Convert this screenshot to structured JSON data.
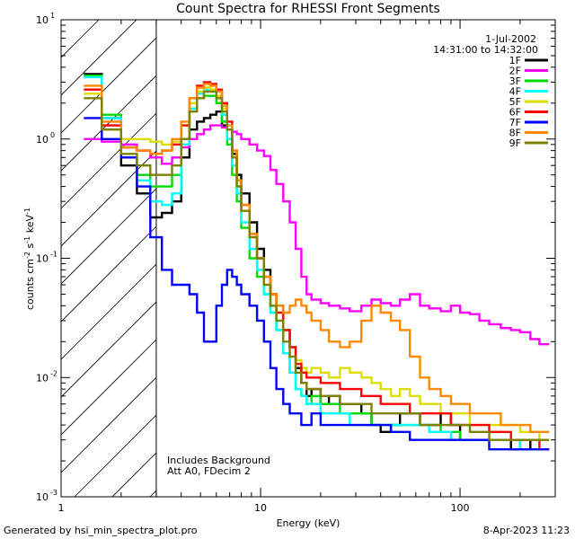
{
  "chart_data": {
    "type": "line",
    "title": "Count Spectra for RHESSI Front Segments",
    "xlabel": "Energy (keV)",
    "ylabel_parts": {
      "a": "counts cm",
      "b": "-2",
      "c": " s",
      "d": "-1",
      "e": " keV",
      "f": "-1"
    },
    "xscale": "log",
    "yscale": "log",
    "xlim": [
      1,
      300
    ],
    "ylim": [
      0.001,
      10
    ],
    "x_ticks": [
      {
        "value": 1,
        "label": "1"
      },
      {
        "value": 10,
        "label": "10"
      },
      {
        "value": 100,
        "label": "100"
      }
    ],
    "y_ticks": [
      {
        "value": 0.001,
        "base": "10",
        "exp": "-3"
      },
      {
        "value": 0.01,
        "base": "10",
        "exp": "-2"
      },
      {
        "value": 0.1,
        "base": "10",
        "exp": "-1"
      },
      {
        "value": 1,
        "base": "10",
        "exp": "0"
      },
      {
        "value": 10,
        "base": "10",
        "exp": "1"
      }
    ],
    "hatched_region_x": [
      1,
      3
    ],
    "date": "1-Jul-2002",
    "time_range": "14:31:00 to 14:32:00",
    "annotation_lines": [
      "Includes Background",
      "Att A0, FDecim 2"
    ],
    "energy_edges": [
      1.3,
      1.6,
      2.0,
      2.4,
      2.8,
      3.2,
      3.6,
      4.0,
      4.4,
      4.8,
      5.2,
      5.6,
      6.0,
      6.4,
      6.8,
      7.2,
      7.6,
      8.0,
      8.8,
      9.6,
      10.4,
      11.2,
      12.0,
      13.0,
      14.0,
      15.0,
      16.0,
      17.0,
      18.0,
      20.0,
      22.0,
      25.0,
      28.0,
      32.0,
      36.0,
      40.0,
      45.0,
      50.0,
      56.0,
      63.0,
      70.0,
      80.0,
      90.0,
      100.0,
      112.0,
      125.0,
      140.0,
      160.0,
      180.0,
      200.0,
      225.0,
      250.0,
      280.0
    ],
    "series": [
      {
        "name": "1F",
        "color": "#000000",
        "values": [
          3.5,
          1.5,
          0.6,
          0.35,
          0.22,
          0.24,
          0.3,
          0.7,
          1.2,
          1.4,
          1.5,
          1.6,
          1.7,
          1.3,
          1.0,
          0.75,
          0.5,
          0.35,
          0.2,
          0.12,
          0.08,
          0.05,
          0.04,
          0.025,
          0.018,
          0.012,
          0.009,
          0.007,
          0.008,
          0.006,
          0.007,
          0.006,
          0.006,
          0.005,
          0.004,
          0.0035,
          0.004,
          0.005,
          0.005,
          0.004,
          0.004,
          0.005,
          0.004,
          0.003,
          0.003,
          0.003,
          0.003,
          0.003,
          0.0025,
          0.003,
          0.0025,
          0.0025
        ]
      },
      {
        "name": "2F",
        "color": "#ff00ff",
        "values": [
          1.0,
          0.95,
          0.9,
          0.8,
          0.7,
          0.62,
          0.7,
          0.85,
          1.0,
          1.1,
          1.2,
          1.3,
          1.3,
          1.25,
          1.2,
          1.15,
          1.1,
          1.0,
          0.9,
          0.8,
          0.72,
          0.55,
          0.42,
          0.3,
          0.2,
          0.12,
          0.07,
          0.05,
          0.045,
          0.042,
          0.04,
          0.038,
          0.036,
          0.04,
          0.045,
          0.042,
          0.04,
          0.045,
          0.05,
          0.04,
          0.038,
          0.036,
          0.04,
          0.035,
          0.034,
          0.03,
          0.028,
          0.026,
          0.025,
          0.024,
          0.021,
          0.019
        ]
      },
      {
        "name": "3F",
        "color": "#00dd00",
        "values": [
          3.4,
          1.6,
          0.7,
          0.5,
          0.4,
          0.4,
          0.5,
          1.0,
          1.8,
          2.2,
          2.3,
          2.3,
          2.0,
          1.4,
          0.9,
          0.5,
          0.3,
          0.18,
          0.1,
          0.07,
          0.05,
          0.035,
          0.025,
          0.016,
          0.011,
          0.008,
          0.007,
          0.006,
          0.007,
          0.006,
          0.006,
          0.005,
          0.005,
          0.005,
          0.004,
          0.004,
          0.004,
          0.004,
          0.004,
          0.004,
          0.004,
          0.0035,
          0.0035,
          0.003,
          0.003,
          0.003,
          0.003,
          0.003,
          0.003,
          0.0025,
          0.0025,
          0.0025
        ]
      },
      {
        "name": "4F",
        "color": "#00ffff",
        "values": [
          3.3,
          1.5,
          0.7,
          0.45,
          0.3,
          0.28,
          0.35,
          0.9,
          1.8,
          2.4,
          2.6,
          2.5,
          2.2,
          1.6,
          1.0,
          0.6,
          0.35,
          0.2,
          0.12,
          0.08,
          0.05,
          0.035,
          0.025,
          0.016,
          0.011,
          0.008,
          0.007,
          0.006,
          0.006,
          0.005,
          0.005,
          0.005,
          0.004,
          0.004,
          0.004,
          0.004,
          0.004,
          0.004,
          0.004,
          0.004,
          0.0035,
          0.0035,
          0.003,
          0.003,
          0.003,
          0.003,
          0.003,
          0.003,
          0.003,
          0.0025,
          0.0025,
          0.0025
        ]
      },
      {
        "name": "5F",
        "color": "#dddd00",
        "values": [
          2.4,
          1.2,
          1.0,
          1.0,
          0.95,
          0.9,
          0.95,
          1.3,
          2.0,
          2.5,
          2.7,
          2.6,
          2.3,
          1.8,
          1.2,
          0.7,
          0.4,
          0.25,
          0.15,
          0.1,
          0.07,
          0.05,
          0.035,
          0.025,
          0.018,
          0.014,
          0.012,
          0.011,
          0.012,
          0.011,
          0.01,
          0.012,
          0.011,
          0.01,
          0.009,
          0.008,
          0.007,
          0.008,
          0.007,
          0.006,
          0.006,
          0.005,
          0.005,
          0.005,
          0.004,
          0.004,
          0.004,
          0.004,
          0.004,
          0.0035,
          0.0035,
          0.003
        ]
      },
      {
        "name": "6F",
        "color": "#ff0000",
        "values": [
          2.6,
          1.3,
          0.85,
          0.8,
          0.75,
          0.8,
          0.9,
          1.3,
          2.2,
          2.8,
          3.0,
          2.9,
          2.6,
          2.0,
          1.4,
          0.8,
          0.45,
          0.28,
          0.16,
          0.1,
          0.07,
          0.05,
          0.035,
          0.025,
          0.018,
          0.013,
          0.011,
          0.01,
          0.01,
          0.009,
          0.009,
          0.008,
          0.008,
          0.007,
          0.007,
          0.006,
          0.006,
          0.006,
          0.005,
          0.005,
          0.005,
          0.005,
          0.004,
          0.004,
          0.004,
          0.004,
          0.0035,
          0.0035,
          0.003,
          0.003,
          0.003,
          0.0025
        ]
      },
      {
        "name": "7F",
        "color": "#0000ff",
        "values": [
          1.5,
          1.0,
          0.7,
          0.4,
          0.15,
          0.08,
          0.06,
          0.06,
          0.05,
          0.035,
          0.02,
          0.02,
          0.04,
          0.06,
          0.08,
          0.07,
          0.06,
          0.05,
          0.04,
          0.03,
          0.02,
          0.012,
          0.008,
          0.006,
          0.005,
          0.005,
          0.004,
          0.004,
          0.005,
          0.004,
          0.004,
          0.004,
          0.004,
          0.004,
          0.004,
          0.004,
          0.0035,
          0.0035,
          0.003,
          0.003,
          0.003,
          0.003,
          0.003,
          0.003,
          0.003,
          0.003,
          0.0025,
          0.0025,
          0.0025,
          0.0025,
          0.0025,
          0.0025
        ]
      },
      {
        "name": "8F",
        "color": "#ff8800",
        "values": [
          2.8,
          1.4,
          0.85,
          0.8,
          0.75,
          0.8,
          1.0,
          1.4,
          2.2,
          2.7,
          2.9,
          2.8,
          2.5,
          1.9,
          1.3,
          0.8,
          0.45,
          0.28,
          0.16,
          0.1,
          0.07,
          0.05,
          0.04,
          0.035,
          0.04,
          0.045,
          0.04,
          0.035,
          0.03,
          0.025,
          0.02,
          0.018,
          0.02,
          0.03,
          0.04,
          0.035,
          0.03,
          0.025,
          0.015,
          0.01,
          0.008,
          0.007,
          0.006,
          0.006,
          0.005,
          0.005,
          0.005,
          0.004,
          0.004,
          0.004,
          0.0035,
          0.0035
        ]
      },
      {
        "name": "9F",
        "color": "#808000",
        "values": [
          2.2,
          1.2,
          0.75,
          0.6,
          0.5,
          0.5,
          0.6,
          1.0,
          1.7,
          2.2,
          2.5,
          2.5,
          2.2,
          1.7,
          1.2,
          0.7,
          0.4,
          0.25,
          0.15,
          0.1,
          0.06,
          0.04,
          0.03,
          0.02,
          0.015,
          0.011,
          0.009,
          0.008,
          0.008,
          0.007,
          0.007,
          0.006,
          0.006,
          0.006,
          0.005,
          0.005,
          0.005,
          0.005,
          0.005,
          0.004,
          0.004,
          0.004,
          0.004,
          0.004,
          0.0035,
          0.0035,
          0.003,
          0.003,
          0.003,
          0.003,
          0.003,
          0.003
        ]
      }
    ]
  },
  "footer": {
    "generator": "Generated by hsi_min_spectra_plot.pro",
    "timestamp": "8-Apr-2023 11:23"
  }
}
